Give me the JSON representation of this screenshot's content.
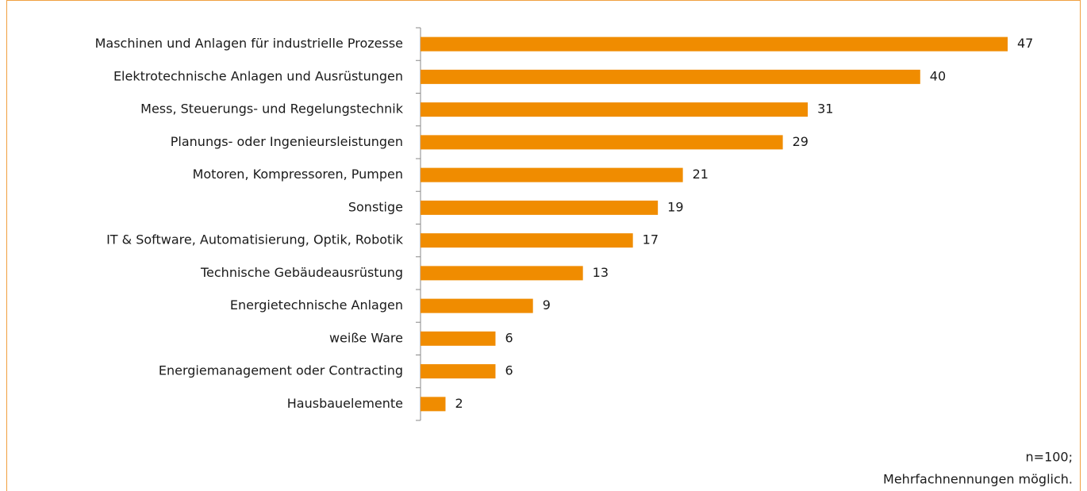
{
  "chart_data": {
    "type": "bar",
    "orientation": "horizontal",
    "categories": [
      "Maschinen und Anlagen für industrielle Prozesse",
      "Elektrotechnische Anlagen und Ausrüstungen",
      "Mess, Steuerungs- und Regelungstechnik",
      "Planungs- oder Ingenieursleistungen",
      "Motoren, Kompressoren, Pumpen",
      "Sonstige",
      "IT & Software, Automatisierung, Optik, Robotik",
      "Technische Gebäudeausrüstung",
      "Energietechnische Anlagen",
      "weiße Ware",
      "Energiemanagement oder Contracting",
      "Hausbauelemente"
    ],
    "values": [
      47,
      40,
      31,
      29,
      21,
      19,
      17,
      13,
      9,
      6,
      6,
      2
    ],
    "color": "#f08c00",
    "notes": [
      "n=100;",
      "Mehrfachnennungen möglich."
    ]
  }
}
